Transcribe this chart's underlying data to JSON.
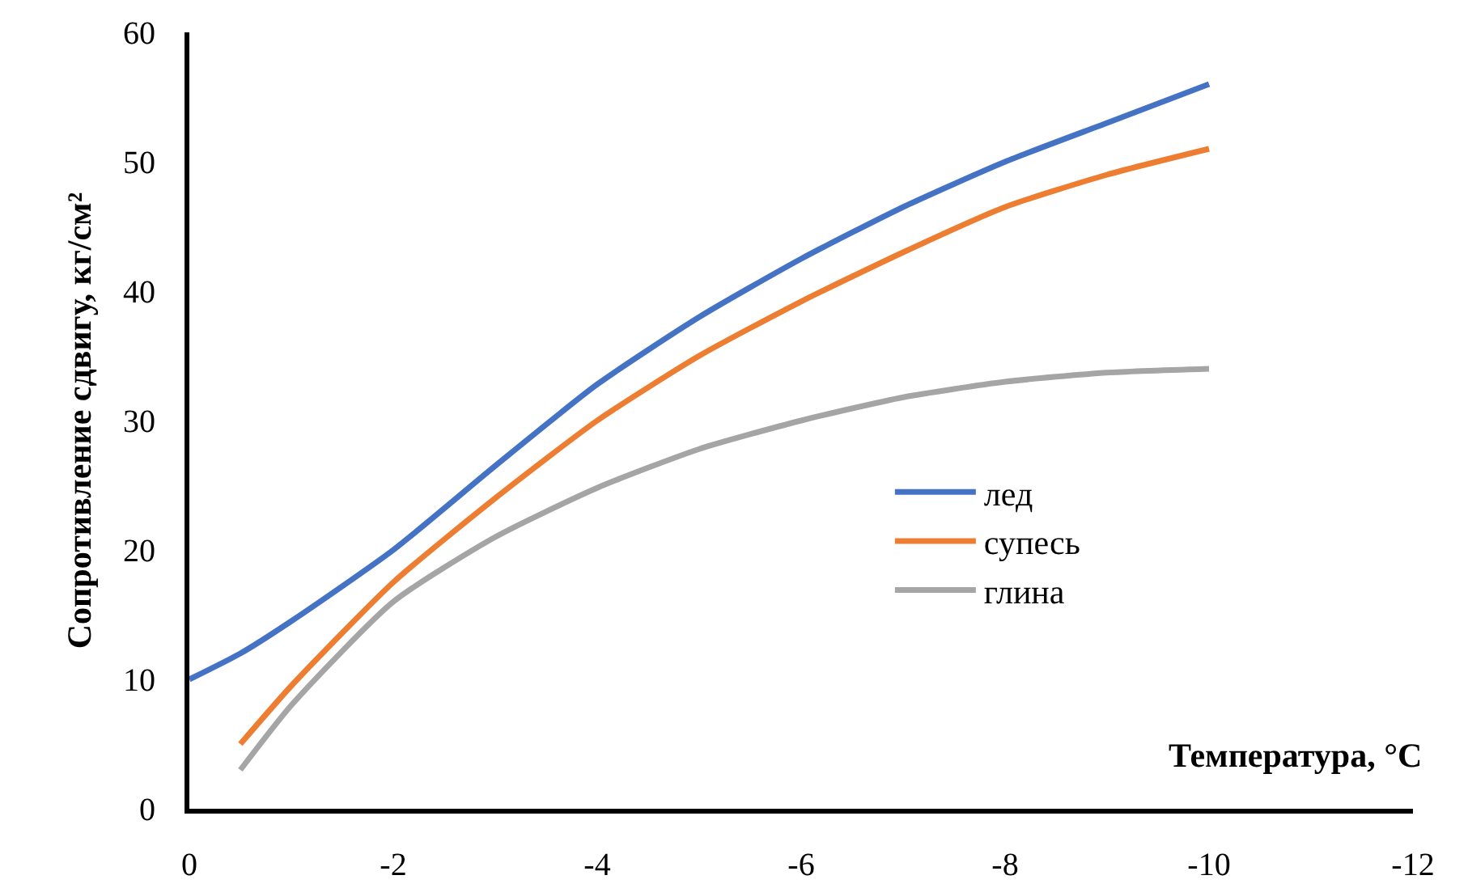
{
  "chart_data": {
    "type": "line",
    "xlabel": "Температура, °C",
    "ylabel": "Сопротивление сдвигу, кг/см²",
    "x": [
      0,
      -0.5,
      -1,
      -2,
      -3,
      -4,
      -5,
      -6,
      -7,
      -8,
      -9,
      -10
    ],
    "series": [
      {
        "name": "лед",
        "color": "#4472c4",
        "values": [
          10,
          12,
          14.5,
          20,
          26.5,
          32.8,
          38,
          42.5,
          46.5,
          50,
          53,
          56
        ]
      },
      {
        "name": "супесь",
        "color": "#ed7d31",
        "values": [
          null,
          5,
          9.5,
          17.5,
          24,
          30,
          35,
          39.2,
          43,
          46.5,
          49,
          51
        ]
      },
      {
        "name": "глина",
        "color": "#a5a5a5",
        "values": [
          null,
          3,
          8,
          16,
          21,
          24.8,
          27.8,
          30,
          31.8,
          33,
          33.7,
          34
        ]
      }
    ],
    "xlim": [
      0,
      -12
    ],
    "xticks": [
      0,
      -2,
      -4,
      -6,
      -8,
      -10,
      -12
    ],
    "ylim": [
      0,
      60
    ],
    "yticks": [
      0,
      10,
      20,
      30,
      40,
      50,
      60
    ],
    "grid": false,
    "legend": "right",
    "marker": "none",
    "line_style": "solid"
  }
}
